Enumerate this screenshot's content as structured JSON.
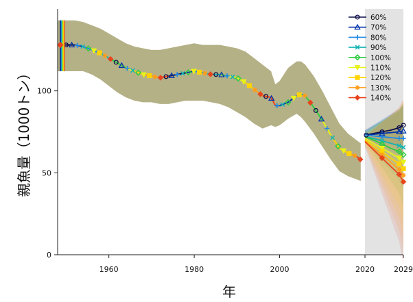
{
  "chart_data": {
    "type": "line",
    "title": "",
    "xlabel": "年",
    "ylabel": "親魚量（1000トン）",
    "xlim": [
      1948,
      2029
    ],
    "ylim": [
      0,
      150
    ],
    "x_ticks": [
      1960,
      1980,
      2000,
      2020,
      2029
    ],
    "y_ticks": [
      0,
      50,
      100
    ],
    "grid": false,
    "legend_position": "top-right",
    "band_color": "#b5b187",
    "projection_start": 2020,
    "projection_shade_color": "#e3e3e3",
    "history": {
      "x": [
        1948,
        1950,
        1952,
        1954,
        1956,
        1958,
        1960,
        1962,
        1964,
        1966,
        1968,
        1970,
        1972,
        1974,
        1976,
        1978,
        1980,
        1982,
        1984,
        1986,
        1988,
        1990,
        1992,
        1994,
        1996,
        1998,
        1999,
        2000,
        2002,
        2004,
        2005,
        2006,
        2008,
        2010,
        2012,
        2014,
        2016,
        2018,
        2019
      ],
      "y": [
        128,
        128,
        128,
        127,
        125,
        123,
        120,
        117,
        114,
        112,
        110,
        109,
        108,
        109,
        110,
        111,
        112,
        111,
        110,
        110,
        109,
        108,
        105,
        101,
        97,
        96,
        91,
        91,
        93,
        97,
        98,
        97,
        90,
        82,
        73,
        65,
        62,
        60,
        58
      ],
      "upper": [
        143,
        143,
        143,
        142,
        140,
        138,
        135,
        132,
        129,
        127,
        126,
        125,
        125,
        126,
        127,
        128,
        129,
        128,
        128,
        128,
        127,
        126,
        124,
        120,
        116,
        112,
        104,
        106,
        114,
        118,
        118,
        116,
        109,
        100,
        90,
        80,
        74,
        70,
        68
      ],
      "lower": [
        112,
        112,
        112,
        112,
        110,
        107,
        103,
        99,
        96,
        94,
        93,
        93,
        92,
        92,
        93,
        94,
        94,
        94,
        93,
        92,
        90,
        87,
        84,
        80,
        77,
        79,
        78,
        79,
        83,
        86,
        84,
        81,
        74,
        66,
        58,
        51,
        48,
        46,
        45
      ]
    },
    "series": [
      {
        "name": "60%",
        "color": "#0d0d4a",
        "marker": "circle",
        "projection": [
          73,
          74,
          75,
          76,
          77.5,
          79
        ]
      },
      {
        "name": "70%",
        "color": "#0033aa",
        "marker": "triangle-up",
        "projection": [
          73,
          73.5,
          74,
          74.5,
          75,
          75.5
        ]
      },
      {
        "name": "80%",
        "color": "#1e88e5",
        "marker": "plus",
        "projection": [
          73,
          72.5,
          72,
          71.5,
          71,
          71
        ]
      },
      {
        "name": "90%",
        "color": "#14b3b3",
        "marker": "x",
        "projection": [
          72,
          71,
          69.5,
          68,
          66.5,
          65.5
        ]
      },
      {
        "name": "100%",
        "color": "#2ecc40",
        "marker": "diamond-open",
        "projection": [
          72,
          70,
          67.5,
          65,
          63,
          61
        ]
      },
      {
        "name": "110%",
        "color": "#e8f218",
        "marker": "triangle-down",
        "projection": [
          71,
          68,
          65,
          62,
          59,
          56.5
        ]
      },
      {
        "name": "120%",
        "color": "#ffd400",
        "marker": "square",
        "projection": [
          70,
          66.5,
          63,
          59,
          55.5,
          52.5
        ]
      },
      {
        "name": "130%",
        "color": "#ff9d1c",
        "marker": "star",
        "projection": [
          69.5,
          65,
          61,
          56.5,
          52,
          48.5
        ]
      },
      {
        "name": "140%",
        "color": "#e8441d",
        "marker": "diamond",
        "projection": [
          69,
          64,
          59,
          54,
          49,
          44.5
        ]
      }
    ],
    "projection_x": [
      2020,
      2022,
      2024,
      2026,
      2028,
      2029
    ]
  }
}
